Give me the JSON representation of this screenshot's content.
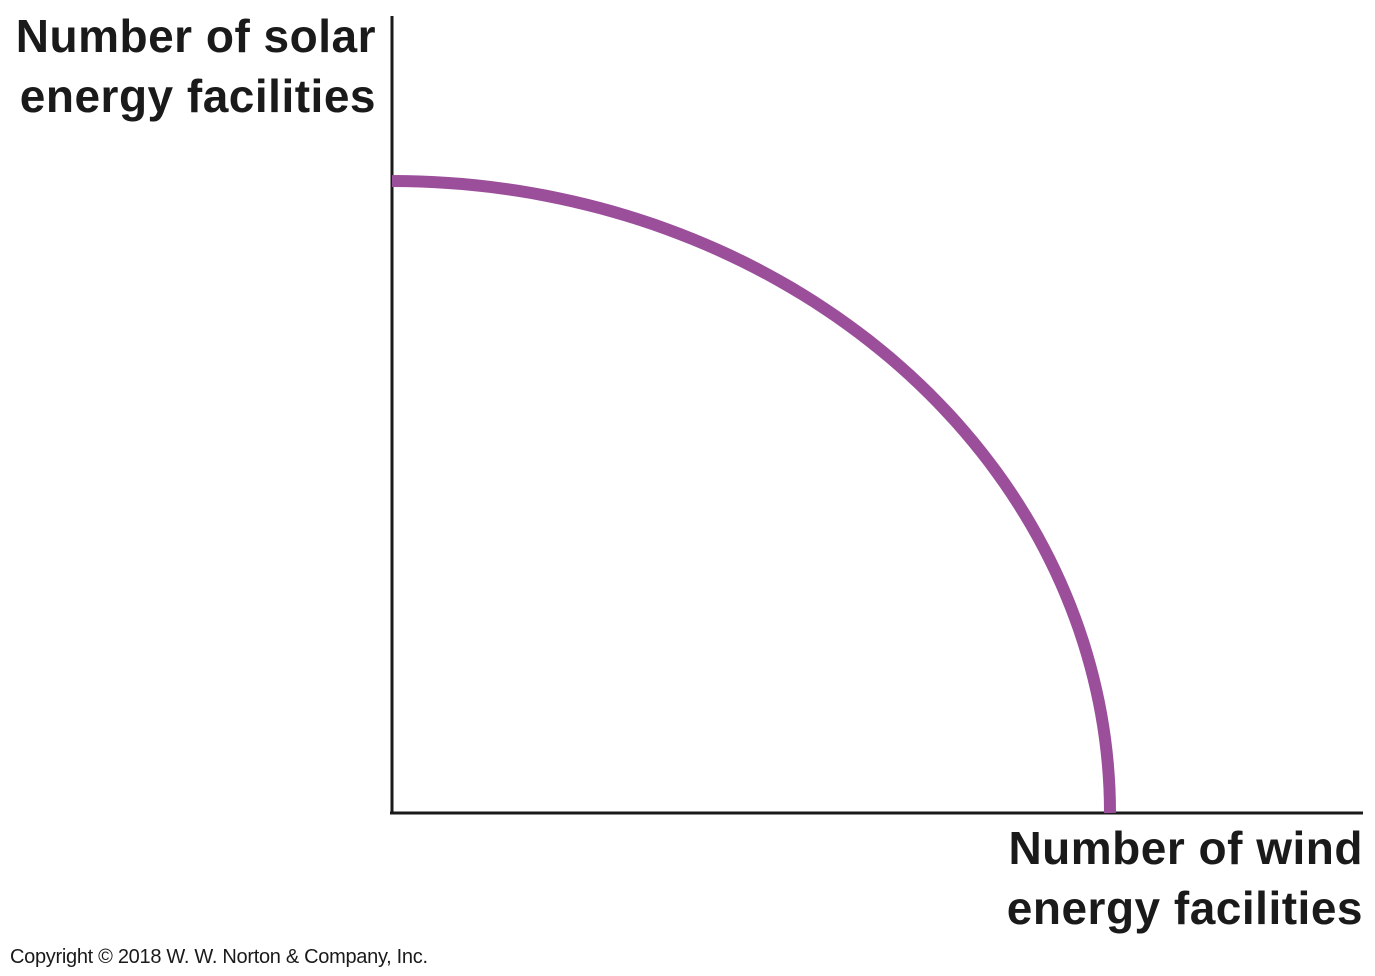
{
  "chart_data": {
    "type": "line",
    "title": "",
    "ylabel_lines": [
      "Number of solar",
      "energy facilities"
    ],
    "xlabel_lines": [
      "Number of wind",
      "energy facilities"
    ],
    "xlim": [
      0,
      1
    ],
    "ylim": [
      0,
      1
    ],
    "grid": false,
    "legend": "none",
    "series": [
      {
        "color": "#9b4f9b",
        "x": [
          0,
          0.2,
          0.4,
          0.6,
          0.8,
          0.9,
          1.0
        ],
        "y": [
          1.0,
          0.98,
          0.917,
          0.8,
          0.6,
          0.436,
          0.0
        ]
      }
    ]
  },
  "colors": {
    "axis": "#1a1a1a",
    "curve": "#9b4f9b"
  },
  "copyright": "Copyright © 2018 W. W. Norton & Company, Inc."
}
